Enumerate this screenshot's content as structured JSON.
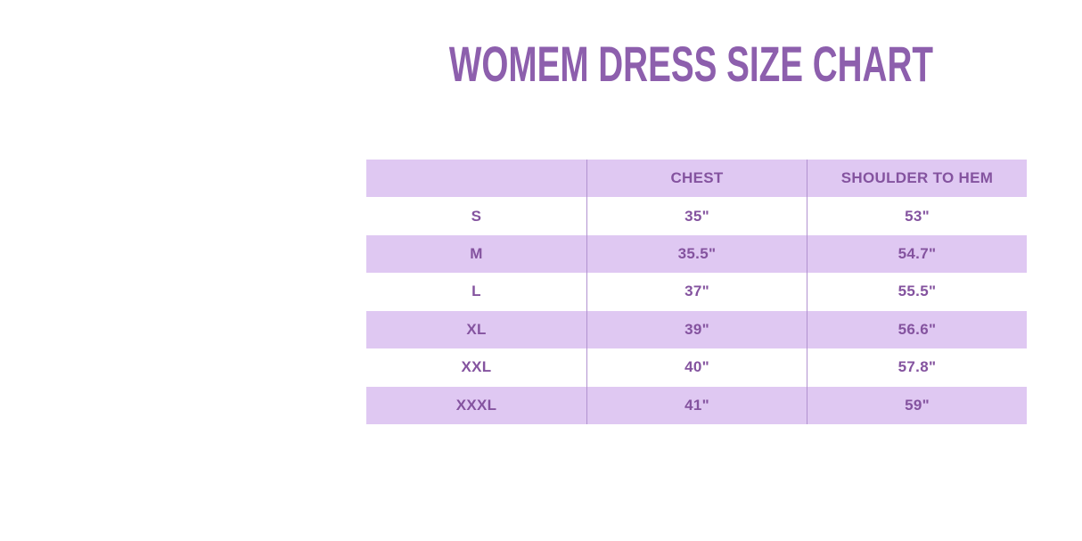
{
  "page": {
    "background": "#ffffff"
  },
  "colors": {
    "title_text": "#8d5fad",
    "table_text": "#84539f",
    "row_shaded": "#dfc8f2",
    "row_plain": "#ffffff",
    "column_divider": "#b292d0"
  },
  "chart_data": {
    "type": "table",
    "title": "WOMEM DRESS SIZE CHART",
    "columns": [
      "",
      "CHEST",
      "SHOULDER TO HEM"
    ],
    "rows": [
      {
        "size": "S",
        "chest": "35\"",
        "shoulder_to_hem": "53\""
      },
      {
        "size": "M",
        "chest": "35.5\"",
        "shoulder_to_hem": "54.7\""
      },
      {
        "size": "L",
        "chest": "37\"",
        "shoulder_to_hem": "55.5\""
      },
      {
        "size": "XL",
        "chest": "39\"",
        "shoulder_to_hem": "56.6\""
      },
      {
        "size": "XXL",
        "chest": "40\"",
        "shoulder_to_hem": "57.8\""
      },
      {
        "size": "XXXL",
        "chest": "41\"",
        "shoulder_to_hem": "59\""
      }
    ],
    "layout": {
      "striping": "header and even data rows lavender, odd data rows white",
      "grid": "vertical dividers only"
    }
  }
}
